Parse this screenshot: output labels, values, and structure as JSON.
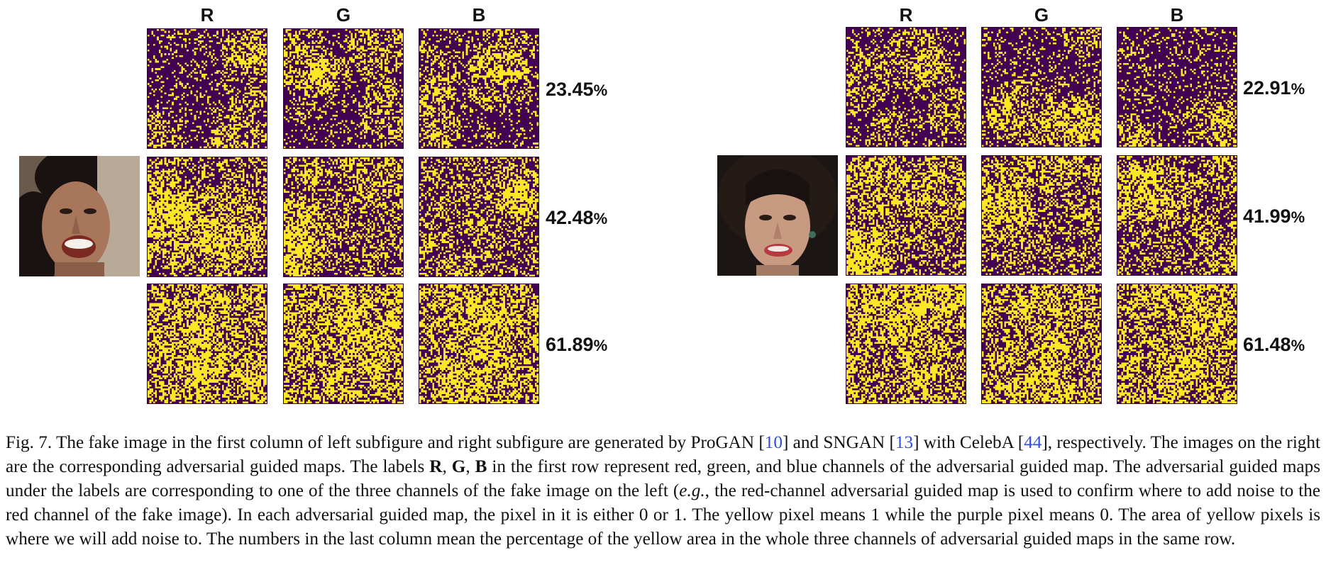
{
  "channels": [
    "R",
    "G",
    "B"
  ],
  "colors": {
    "yellow": "#fde725",
    "purple": "#440154"
  },
  "panels": [
    {
      "name": "left",
      "face_description": "ProGAN fake face",
      "rows": [
        {
          "percent_value": "23.45",
          "percent_sign": "%",
          "yellow_fraction": 0.2345
        },
        {
          "percent_value": "42.48",
          "percent_sign": "%",
          "yellow_fraction": 0.4248
        },
        {
          "percent_value": "61.89",
          "percent_sign": "%",
          "yellow_fraction": 0.6189
        }
      ]
    },
    {
      "name": "right",
      "face_description": "SNGAN fake face",
      "rows": [
        {
          "percent_value": "22.91",
          "percent_sign": "%",
          "yellow_fraction": 0.2291
        },
        {
          "percent_value": "41.99",
          "percent_sign": "%",
          "yellow_fraction": 0.4199
        },
        {
          "percent_value": "61.48",
          "percent_sign": "%",
          "yellow_fraction": 0.6148
        }
      ]
    }
  ],
  "caption": {
    "p1": "Fig. 7.  The fake image in the first column of left subfigure and right subfigure are generated by ProGAN [",
    "ref1": "10",
    "p2": "] and SNGAN [",
    "ref2": "13",
    "p3": "] with CelebA [",
    "ref3": "44",
    "p4": "], respectively. The images on the right are the corresponding adversarial guided maps. The labels ",
    "labR": "R",
    "sep1": ", ",
    "labG": "G",
    "sep2": ", ",
    "labB": "B",
    "p5": " in the first row represent red, green, and blue channels of the adversarial guided map. The adversarial guided maps under the labels are corresponding to one of the three channels of the fake image on the left (",
    "eg": "e.g.",
    "p6": ", the red-channel adversarial guided map is used to confirm where to add noise to the red channel of the fake image). In each adversarial guided map, the pixel in it is either 0 or 1. The yellow pixel means 1 while the purple pixel means 0. The area of yellow pixels is where we will add noise to. The numbers in the last column mean the percentage of the yellow area in the whole three channels of adversarial guided maps in the same row."
  }
}
